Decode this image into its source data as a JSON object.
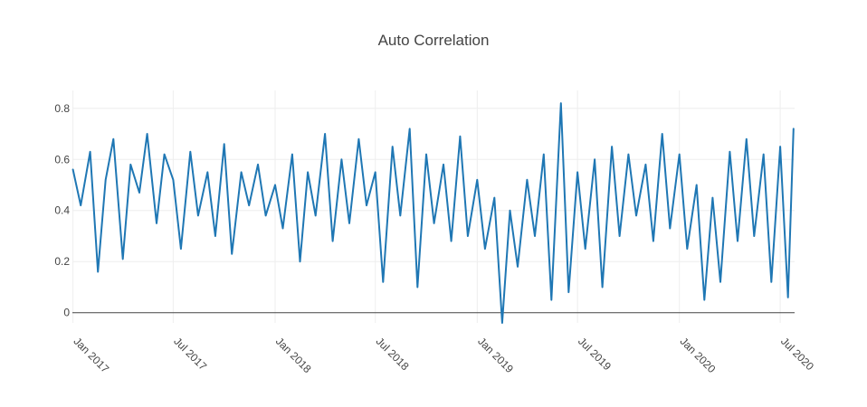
{
  "chart_data": {
    "type": "line",
    "title": "Auto Correlation",
    "xlabel": "",
    "ylabel": "",
    "x_range": [
      "2016-12-31",
      "2020-07-27"
    ],
    "ylim": [
      -0.04,
      0.87
    ],
    "grid": true,
    "legend": "none",
    "series_color": "#1f77b4",
    "zero_line_color": "#444444",
    "grid_color": "#eeeeee",
    "title_color": "#444444",
    "x_ticks": [
      {
        "date": "2017-01-01",
        "label": "Jan 2017"
      },
      {
        "date": "2017-07-01",
        "label": "Jul 2017"
      },
      {
        "date": "2018-01-01",
        "label": "Jan 2018"
      },
      {
        "date": "2018-07-01",
        "label": "Jul 2018"
      },
      {
        "date": "2019-01-01",
        "label": "Jan 2019"
      },
      {
        "date": "2019-07-01",
        "label": "Jul 2019"
      },
      {
        "date": "2020-01-01",
        "label": "Jan 2020"
      },
      {
        "date": "2020-07-01",
        "label": "Jul 2020"
      }
    ],
    "y_ticks": [
      {
        "value": 0,
        "label": "0"
      },
      {
        "value": 0.2,
        "label": "0.2"
      },
      {
        "value": 0.4,
        "label": "0.4"
      },
      {
        "value": 0.6,
        "label": "0.6"
      },
      {
        "value": 0.8,
        "label": "0.8"
      }
    ],
    "series": [
      {
        "x": [
          "2017-01-01",
          "2017-01-15",
          "2017-02-01",
          "2017-02-15",
          "2017-03-01",
          "2017-03-15",
          "2017-04-01",
          "2017-04-15",
          "2017-05-01",
          "2017-05-15",
          "2017-06-01",
          "2017-06-15",
          "2017-07-01",
          "2017-07-15",
          "2017-08-01",
          "2017-08-15",
          "2017-09-01",
          "2017-09-15",
          "2017-10-01",
          "2017-10-15",
          "2017-11-01",
          "2017-11-15",
          "2017-12-01",
          "2017-12-15",
          "2018-01-01",
          "2018-01-15",
          "2018-02-01",
          "2018-02-15",
          "2018-03-01",
          "2018-03-15",
          "2018-04-01",
          "2018-04-15",
          "2018-05-01",
          "2018-05-15",
          "2018-06-01",
          "2018-06-15",
          "2018-07-01",
          "2018-07-15",
          "2018-08-01",
          "2018-08-15",
          "2018-09-01",
          "2018-09-15",
          "2018-10-01",
          "2018-10-15",
          "2018-11-01",
          "2018-11-15",
          "2018-12-01",
          "2018-12-15",
          "2019-01-01",
          "2019-01-15",
          "2019-02-01",
          "2019-02-15",
          "2019-03-01",
          "2019-03-15",
          "2019-04-01",
          "2019-04-15",
          "2019-05-01",
          "2019-05-15",
          "2019-06-01",
          "2019-06-15",
          "2019-07-01",
          "2019-07-15",
          "2019-08-01",
          "2019-08-15",
          "2019-09-01",
          "2019-09-15",
          "2019-10-01",
          "2019-10-15",
          "2019-11-01",
          "2019-11-15",
          "2019-12-01",
          "2019-12-15",
          "2020-01-01",
          "2020-01-15",
          "2020-02-01",
          "2020-02-15",
          "2020-03-01",
          "2020-03-15",
          "2020-04-01",
          "2020-04-15",
          "2020-05-01",
          "2020-05-15",
          "2020-06-01",
          "2020-06-15",
          "2020-07-01",
          "2020-07-15",
          "2020-07-25"
        ],
        "y": [
          0.56,
          0.42,
          0.63,
          0.16,
          0.52,
          0.68,
          0.21,
          0.58,
          0.47,
          0.7,
          0.35,
          0.62,
          0.52,
          0.25,
          0.63,
          0.38,
          0.55,
          0.3,
          0.66,
          0.23,
          0.55,
          0.42,
          0.58,
          0.38,
          0.5,
          0.33,
          0.62,
          0.2,
          0.55,
          0.38,
          0.7,
          0.28,
          0.6,
          0.35,
          0.68,
          0.42,
          0.55,
          0.12,
          0.65,
          0.38,
          0.72,
          0.1,
          0.62,
          0.35,
          0.58,
          0.28,
          0.69,
          0.3,
          0.52,
          0.25,
          0.45,
          -0.04,
          0.4,
          0.18,
          0.52,
          0.3,
          0.62,
          0.05,
          0.82,
          0.08,
          0.55,
          0.25,
          0.6,
          0.1,
          0.65,
          0.3,
          0.62,
          0.38,
          0.58,
          0.28,
          0.7,
          0.33,
          0.62,
          0.25,
          0.5,
          0.05,
          0.45,
          0.12,
          0.63,
          0.28,
          0.68,
          0.3,
          0.62,
          0.12,
          0.65,
          0.06,
          0.72
        ]
      }
    ]
  }
}
